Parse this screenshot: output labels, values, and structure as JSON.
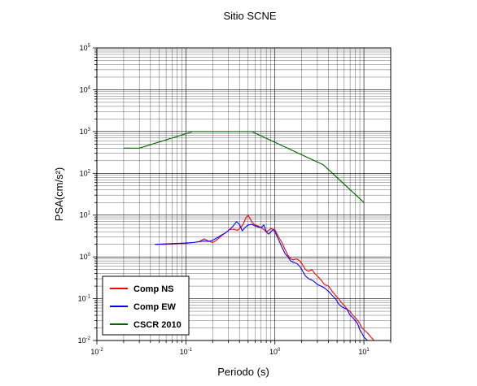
{
  "chart_data": {
    "type": "line",
    "title": "Sitio SCNE",
    "xlabel": "Periodo (s)",
    "ylabel": "PSA(cm/s²)",
    "x_scale": "log",
    "y_scale": "log",
    "xlim": [
      0.01,
      20
    ],
    "ylim": [
      0.01,
      100000
    ],
    "grid": true,
    "legend_position": "bottom-left",
    "x_tick_labels": [
      {
        "value": 0.01,
        "base": "10",
        "exp": "-2"
      },
      {
        "value": 0.1,
        "base": "10",
        "exp": "-1"
      },
      {
        "value": 1,
        "base": "10",
        "exp": "0"
      },
      {
        "value": 10,
        "base": "10",
        "exp": "1"
      }
    ],
    "y_tick_labels": [
      {
        "value": 0.01,
        "base": "10",
        "exp": "-2"
      },
      {
        "value": 0.1,
        "base": "10",
        "exp": "-1"
      },
      {
        "value": 1,
        "base": "10",
        "exp": "0"
      },
      {
        "value": 10,
        "base": "10",
        "exp": "1"
      },
      {
        "value": 100,
        "base": "10",
        "exp": "2"
      },
      {
        "value": 1000,
        "base": "10",
        "exp": "3"
      },
      {
        "value": 10000,
        "base": "10",
        "exp": "4"
      },
      {
        "value": 100000,
        "base": "10",
        "exp": "5"
      }
    ],
    "series": [
      {
        "name": "Comp NS",
        "color": "#ff0000",
        "x": [
          0.045,
          0.06,
          0.08,
          0.1,
          0.12,
          0.14,
          0.16,
          0.18,
          0.2,
          0.22,
          0.25,
          0.28,
          0.31,
          0.35,
          0.38,
          0.41,
          0.44,
          0.47,
          0.5,
          0.53,
          0.56,
          0.6,
          0.65,
          0.7,
          0.75,
          0.8,
          0.85,
          0.9,
          0.95,
          1.0,
          1.1,
          1.2,
          1.3,
          1.4,
          1.5,
          1.6,
          1.75,
          1.9,
          2.0,
          2.2,
          2.4,
          2.6,
          2.8,
          3.0,
          3.3,
          3.6,
          4.0,
          4.4,
          4.8,
          5.2,
          5.6,
          6.0,
          6.5,
          7.0,
          7.5,
          8.0,
          8.5,
          9.0,
          9.5,
          10.0,
          11.0,
          12.0,
          13.0
        ],
        "values": [
          2.0,
          2.0,
          2.1,
          2.1,
          2.2,
          2.3,
          2.7,
          2.4,
          2.2,
          2.5,
          3.2,
          3.8,
          4.5,
          4.6,
          4.3,
          5.0,
          6.0,
          8.5,
          10.0,
          8.0,
          6.5,
          5.8,
          5.5,
          5.0,
          4.5,
          4.0,
          4.3,
          4.8,
          4.6,
          4.5,
          3.0,
          2.2,
          1.5,
          1.1,
          0.9,
          0.85,
          0.9,
          0.8,
          0.7,
          0.5,
          0.45,
          0.5,
          0.4,
          0.35,
          0.28,
          0.22,
          0.2,
          0.15,
          0.12,
          0.1,
          0.08,
          0.07,
          0.055,
          0.05,
          0.04,
          0.035,
          0.03,
          0.025,
          0.02,
          0.018,
          0.015,
          0.012,
          0.01
        ]
      },
      {
        "name": "Comp EW",
        "color": "#0000ff",
        "x": [
          0.045,
          0.06,
          0.08,
          0.1,
          0.12,
          0.14,
          0.16,
          0.18,
          0.2,
          0.22,
          0.25,
          0.28,
          0.31,
          0.34,
          0.37,
          0.4,
          0.43,
          0.46,
          0.5,
          0.55,
          0.6,
          0.65,
          0.7,
          0.75,
          0.8,
          0.85,
          0.9,
          0.95,
          1.0,
          1.1,
          1.2,
          1.3,
          1.4,
          1.5,
          1.6,
          1.75,
          1.9,
          2.0,
          2.2,
          2.4,
          2.6,
          2.8,
          3.0,
          3.3,
          3.6,
          4.0,
          4.4,
          4.8,
          5.2,
          5.6,
          6.0,
          6.5,
          7.0,
          7.5,
          8.0,
          8.5,
          9.0,
          9.5,
          10.0,
          11.0
        ],
        "values": [
          2.0,
          2.05,
          2.1,
          2.15,
          2.2,
          2.3,
          2.4,
          2.35,
          2.5,
          2.8,
          3.3,
          3.8,
          4.5,
          5.5,
          7.0,
          6.0,
          4.2,
          5.0,
          5.8,
          6.0,
          5.5,
          5.2,
          5.0,
          5.8,
          4.0,
          3.5,
          4.0,
          4.5,
          4.0,
          2.6,
          1.7,
          1.2,
          1.0,
          0.8,
          0.75,
          0.7,
          0.6,
          0.5,
          0.35,
          0.3,
          0.28,
          0.25,
          0.22,
          0.2,
          0.18,
          0.15,
          0.12,
          0.1,
          0.075,
          0.065,
          0.06,
          0.055,
          0.04,
          0.035,
          0.03,
          0.025,
          0.018,
          0.015,
          0.012,
          0.01
        ]
      },
      {
        "name": "CSCR 2010",
        "color": "#006400",
        "x": [
          0.02,
          0.03,
          0.12,
          0.55,
          3.5,
          10.0
        ],
        "values": [
          400,
          400,
          1000,
          1000,
          160,
          20
        ]
      }
    ]
  }
}
